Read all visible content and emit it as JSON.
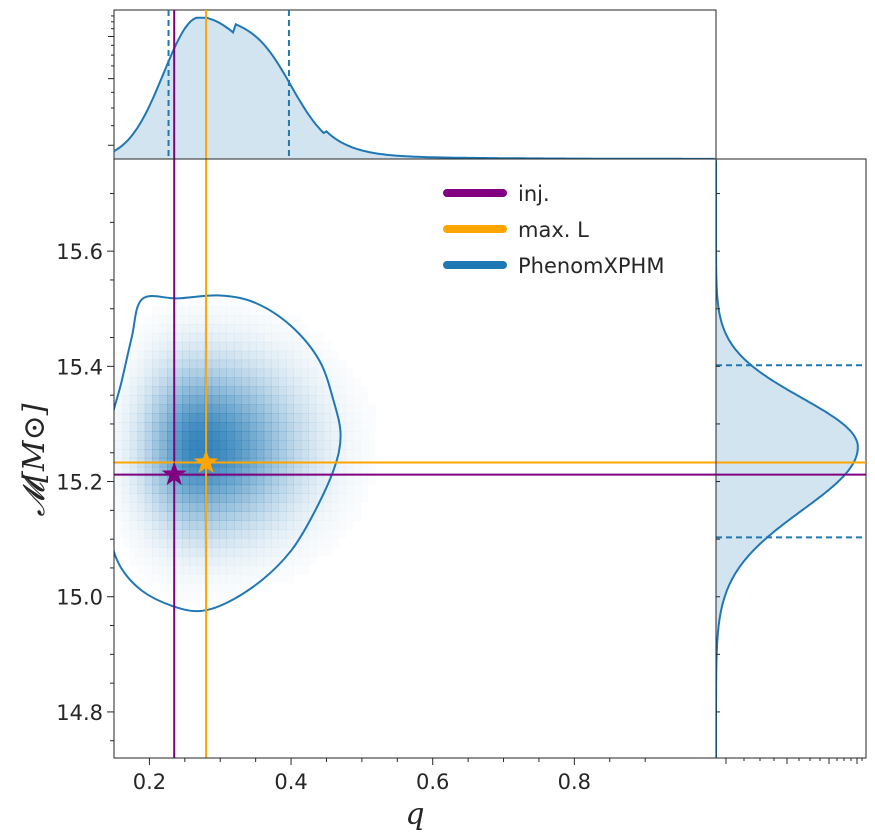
{
  "chart_data": {
    "type": "corner-plot (2D posterior histogram with marginals)",
    "xlabel": "q",
    "ylabel": "𝓜[M⊙]",
    "xlim": [
      0.15,
      1.0
    ],
    "ylim": [
      14.72,
      15.76
    ],
    "x_ticks": [
      {
        "v": 0.2,
        "label": "0.2"
      },
      {
        "v": 0.4,
        "label": "0.4"
      },
      {
        "v": 0.6,
        "label": "0.6"
      },
      {
        "v": 0.8,
        "label": "0.8"
      }
    ],
    "y_ticks": [
      {
        "v": 14.8,
        "label": "14.8"
      },
      {
        "v": 15.0,
        "label": "15.0"
      },
      {
        "v": 15.2,
        "label": "15.2"
      },
      {
        "v": 15.4,
        "label": "15.4"
      },
      {
        "v": 15.6,
        "label": "15.6"
      }
    ],
    "legend": {
      "placement": "upper-center",
      "entries": [
        {
          "label": "inj.",
          "color": "#800080"
        },
        {
          "label": "max. L",
          "color": "#FFA500"
        },
        {
          "label": "PhenomXPHM",
          "color": "#1f77b4"
        }
      ]
    },
    "injection": {
      "q": 0.235,
      "chirp_mass": 15.212,
      "color": "#800080"
    },
    "max_likelihood": {
      "q": 0.28,
      "chirp_mass": 15.233,
      "color": "#FFA500"
    },
    "posterior": {
      "color": "#1f77b4",
      "q_peak": 0.27,
      "q_credible_interval": [
        0.227,
        0.397
      ],
      "chirp_mass_mean": 15.26,
      "chirp_mass_credible_interval": [
        15.103,
        15.402
      ],
      "contour": [
        [
          0.19,
          15.517
        ],
        [
          0.24,
          15.518
        ],
        [
          0.3,
          15.523
        ],
        [
          0.35,
          15.51
        ],
        [
          0.4,
          15.47
        ],
        [
          0.44,
          15.41
        ],
        [
          0.46,
          15.34
        ],
        [
          0.47,
          15.28
        ],
        [
          0.46,
          15.22
        ],
        [
          0.43,
          15.14
        ],
        [
          0.4,
          15.08
        ],
        [
          0.36,
          15.03
        ],
        [
          0.31,
          14.99
        ],
        [
          0.27,
          14.975
        ],
        [
          0.23,
          14.985
        ],
        [
          0.19,
          15.01
        ],
        [
          0.16,
          15.05
        ],
        [
          0.145,
          15.1
        ],
        [
          0.14,
          15.16
        ],
        [
          0.14,
          15.23
        ],
        [
          0.145,
          15.3
        ],
        [
          0.16,
          15.37
        ],
        [
          0.175,
          15.45
        ]
      ]
    }
  }
}
